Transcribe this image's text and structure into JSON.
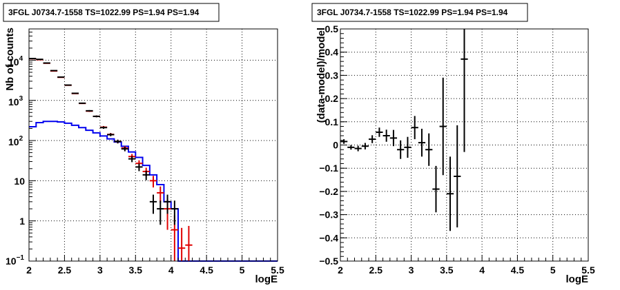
{
  "colors": {
    "data": "#000000",
    "model_total": "#e00000",
    "model_source": "#0000ee"
  },
  "chart_data": [
    {
      "type": "line",
      "title": "3FGL J0734.7-1558 TS=1022.99 PS=1.94 PS=1.94",
      "xlabel": "logE",
      "ylabel": "Nb of counts",
      "xlim": [
        2,
        5.5
      ],
      "ylim": [
        0.1,
        60000
      ],
      "yscale": "log",
      "grid": true,
      "xticks": [
        "2",
        "2.5",
        "3",
        "3.5",
        "4",
        "4.5",
        "5",
        "5.5"
      ],
      "yticks": [
        "10^4",
        "10^3",
        "10^2",
        "10",
        "1",
        "10^-1"
      ],
      "bin_edges": [
        2.0,
        2.1,
        2.2,
        2.3,
        2.4,
        2.5,
        2.6,
        2.7,
        2.8,
        2.9,
        3.0,
        3.1,
        3.2,
        3.3,
        3.4,
        3.5,
        3.6,
        3.7,
        3.8,
        3.9,
        4.0,
        4.1,
        4.2,
        4.3,
        4.4,
        4.5,
        4.6,
        4.7,
        4.8,
        4.9,
        5.0,
        5.1,
        5.2,
        5.3,
        5.4,
        5.5
      ],
      "series": [
        {
          "style": "points",
          "x": [
            2.05,
            2.15,
            2.25,
            2.35,
            2.45,
            2.55,
            2.65,
            2.75,
            2.85,
            2.95,
            3.05,
            3.15,
            3.25,
            3.35,
            3.45,
            3.55,
            3.65,
            3.75,
            3.85,
            3.95,
            4.05
          ],
          "y": [
            11000,
            10500,
            8500,
            5500,
            3800,
            2400,
            1500,
            850,
            550,
            400,
            210,
            140,
            95,
            62,
            35,
            22,
            14,
            3,
            2,
            3,
            2
          ],
          "err_low": [
            105,
            100,
            92,
            74,
            62,
            49,
            39,
            29,
            23,
            20,
            14,
            12,
            10,
            8,
            6,
            4.7,
            3.7,
            1.5,
            1.2,
            1.5,
            1.2
          ],
          "err_high": [
            105,
            100,
            92,
            74,
            62,
            49,
            39,
            29,
            23,
            20,
            14,
            12,
            10,
            8,
            6,
            4.7,
            3.7,
            1.5,
            1.2,
            1.5,
            1.2
          ]
        },
        {
          "style": "model-points",
          "x": [
            2.05,
            2.15,
            2.25,
            2.35,
            2.45,
            2.55,
            2.65,
            2.75,
            2.85,
            2.95,
            3.05,
            3.15,
            3.25,
            3.35,
            3.45,
            3.55,
            3.65,
            3.75,
            3.85,
            3.95,
            4.05,
            4.15,
            4.25
          ],
          "y": [
            10900,
            10300,
            8400,
            5400,
            3750,
            2380,
            1480,
            840,
            540,
            400,
            215,
            142,
            95,
            65,
            40,
            27,
            17,
            10,
            5,
            2,
            0.6,
            0.21,
            0.25
          ],
          "err_low": [
            104,
            101,
            92,
            73,
            61,
            49,
            38,
            29,
            23,
            20,
            15,
            12,
            10,
            8,
            6.3,
            5.2,
            4.1,
            3.2,
            2.2,
            1.4,
            0.5,
            0.2,
            0.2
          ],
          "err_high": [
            104,
            101,
            92,
            73,
            61,
            49,
            38,
            29,
            23,
            20,
            15,
            12,
            10,
            8,
            6.3,
            5.2,
            4.1,
            3.2,
            2.2,
            1.4,
            0.77,
            0.46,
            0.5
          ]
        },
        {
          "style": "histogram",
          "values": [
            220,
            280,
            300,
            300,
            290,
            270,
            240,
            210,
            180,
            155,
            130,
            110,
            92,
            72,
            52,
            38,
            24,
            14,
            8,
            3,
            2,
            0.1,
            0.1,
            0.1,
            0.1,
            0.1,
            0.1,
            0.1,
            0.1,
            0.1,
            0.1,
            0.1,
            0.1,
            0.1,
            0.1
          ]
        }
      ]
    },
    {
      "type": "scatter",
      "title": "3FGL J0734.7-1558 TS=1022.99 PS=1.94 PS=1.94",
      "xlabel": "logE",
      "ylabel": "(data-model)/model",
      "xlim": [
        2,
        5.5
      ],
      "ylim": [
        -0.5,
        0.5
      ],
      "grid": true,
      "xticks": [
        "2",
        "2.5",
        "3",
        "3.5",
        "4",
        "4.5",
        "5",
        "5.5"
      ],
      "yticks": [
        "0.5",
        "0.4",
        "0.3",
        "0.2",
        "0.1",
        "0",
        "−0.1",
        "−0.2",
        "−0.3",
        "−0.4",
        "−0.5"
      ],
      "series": [
        {
          "x": [
            2.05,
            2.15,
            2.25,
            2.35,
            2.45,
            2.55,
            2.65,
            2.75,
            2.85,
            2.95,
            3.05,
            3.15,
            3.25,
            3.35,
            3.45,
            3.55,
            3.65,
            3.75
          ],
          "y": [
            0.015,
            -0.01,
            -0.015,
            -0.005,
            0.025,
            0.055,
            0.04,
            0.03,
            -0.02,
            -0.01,
            0.075,
            0.01,
            -0.02,
            -0.19,
            0.08,
            -0.21,
            -0.135,
            0.37
          ],
          "err": [
            0.01,
            0.01,
            0.012,
            0.014,
            0.017,
            0.02,
            0.026,
            0.035,
            0.04,
            0.045,
            0.05,
            0.06,
            0.07,
            0.1,
            0.21,
            0.16,
            0.22,
            0.4
          ]
        }
      ]
    }
  ]
}
